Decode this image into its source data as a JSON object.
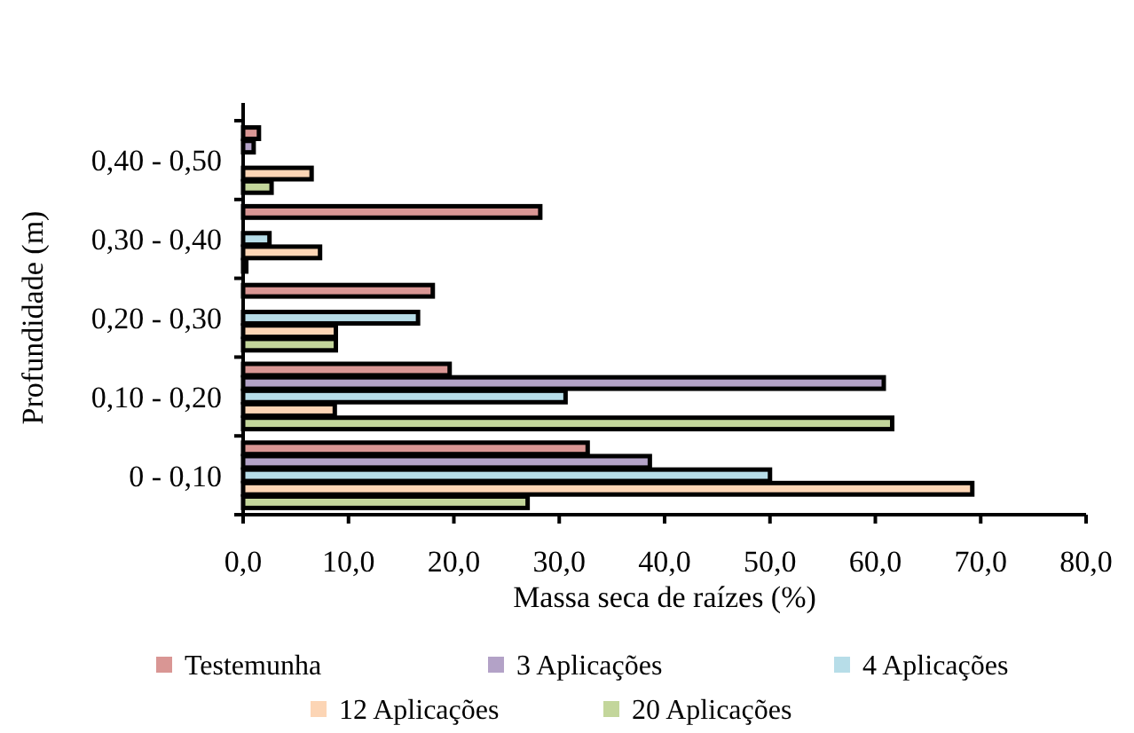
{
  "chart_data": {
    "type": "bar",
    "orientation": "horizontal",
    "xlabel": "Massa seca de raízes (%)",
    "ylabel": "Profundidade (m)",
    "categories": [
      "0,40 - 0,50",
      "0,30 - 0,40",
      "0,20 - 0,30",
      "0,10 - 0,20",
      "0 - 0,10"
    ],
    "series": [
      {
        "name": "Testemunha",
        "color": "#d99694",
        "values": [
          1.5,
          28.2,
          18.0,
          19.6,
          32.7
        ]
      },
      {
        "name": "3 Aplicações",
        "color": "#b3a2c7",
        "values": [
          1.0,
          0,
          0,
          60.8,
          38.6
        ]
      },
      {
        "name": "4 Aplicações",
        "color": "#b7dde8",
        "values": [
          null,
          2.5,
          16.6,
          30.6,
          50.0
        ]
      },
      {
        "name": "12 Aplicações",
        "color": "#fcd5b5",
        "values": [
          6.5,
          7.3,
          8.8,
          8.7,
          69.2
        ]
      },
      {
        "name": "20 Aplicações",
        "color": "#c3d69b",
        "values": [
          2.7,
          0.3,
          8.8,
          61.6,
          27.0
        ]
      }
    ],
    "xlim": [
      0,
      80
    ],
    "xticks": [
      {
        "value": 0,
        "label": "0,0"
      },
      {
        "value": 10,
        "label": "10,0"
      },
      {
        "value": 20,
        "label": "20,0"
      },
      {
        "value": 30,
        "label": "30,0"
      },
      {
        "value": 40,
        "label": "40,0"
      },
      {
        "value": 50,
        "label": "50,0"
      },
      {
        "value": 60,
        "label": "60,0"
      },
      {
        "value": 70,
        "label": "70,0"
      },
      {
        "value": 80,
        "label": "80,0"
      }
    ],
    "grid": false,
    "legend": "bottom"
  }
}
